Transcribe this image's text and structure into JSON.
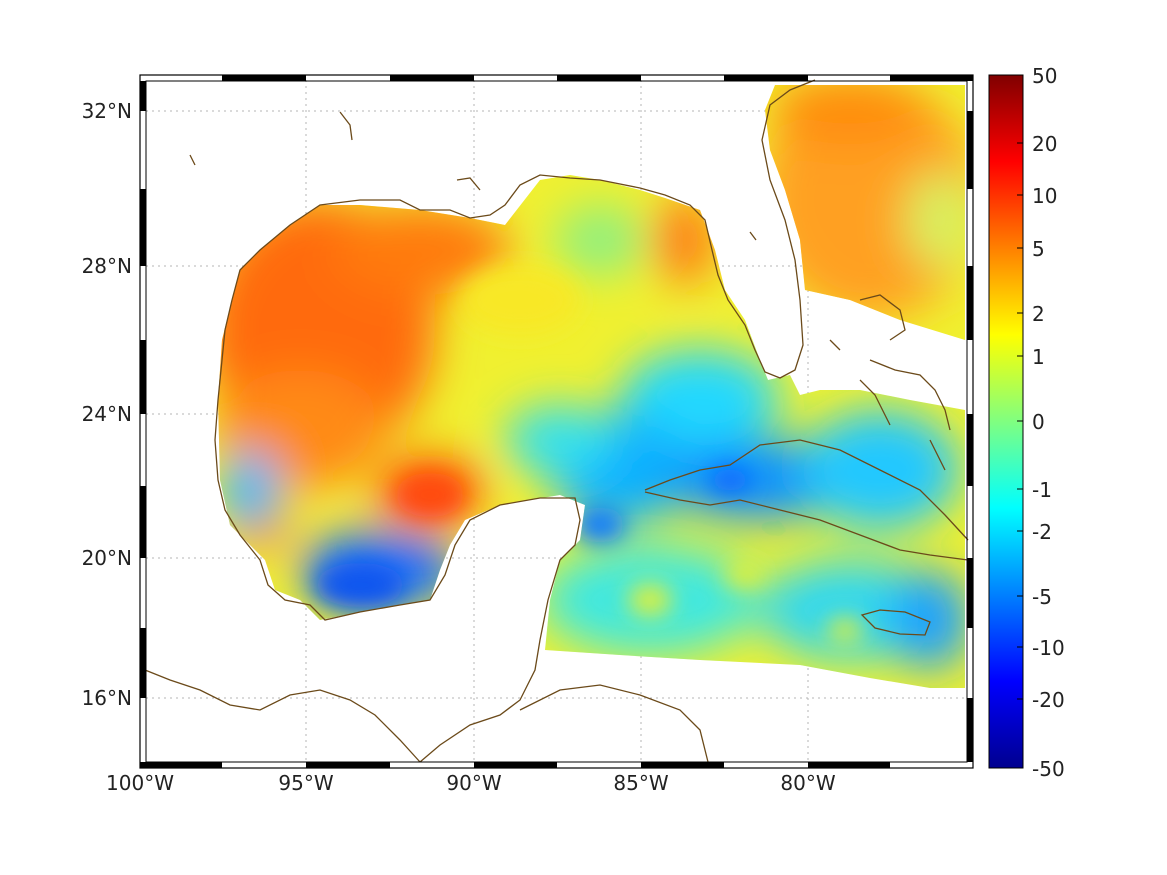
{
  "map": {
    "lon_ticks": [
      "100°W",
      "95°W",
      "90°W",
      "85°W",
      "80°W"
    ],
    "lat_ticks": [
      "32°N",
      "28°N",
      "24°N",
      "20°N",
      "16°N"
    ]
  },
  "colorbar": {
    "tick_labels": [
      "50",
      "20",
      "10",
      "5",
      "2",
      "1",
      "0",
      "-1",
      "-2",
      "-5",
      "-10",
      "-20",
      "-50"
    ],
    "colormap": "jet",
    "colors": [
      "#00008f",
      "#0000ff",
      "#0080ff",
      "#00ffff",
      "#80ff80",
      "#ffff00",
      "#ff8000",
      "#ff0000",
      "#800000"
    ]
  },
  "colors": {
    "coastline": "#6b4a1a",
    "grid": "#b4b4b4",
    "frame": "#000000"
  }
}
